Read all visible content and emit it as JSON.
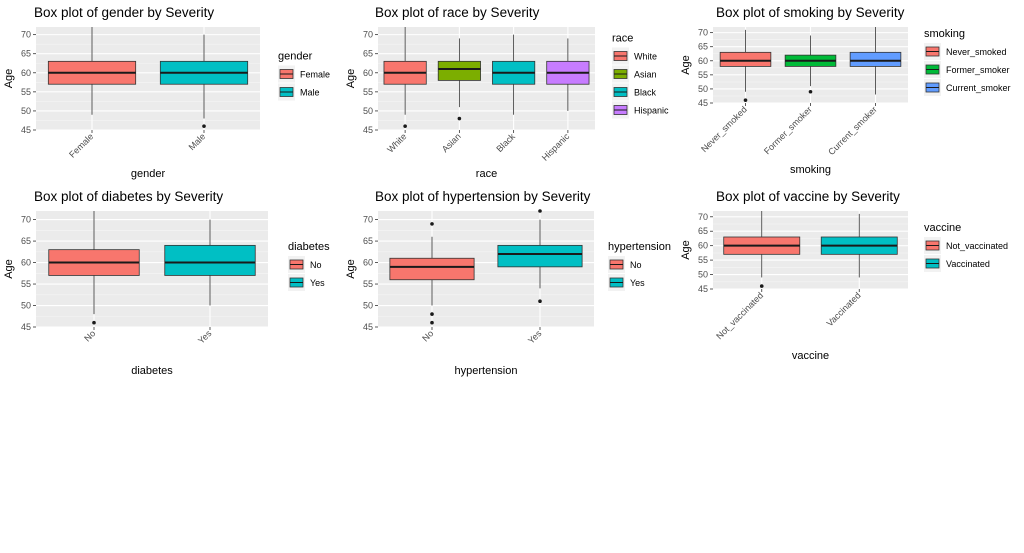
{
  "chart_data": [
    {
      "type": "boxplot",
      "title": "Box plot of gender by Severity",
      "xlabel": "gender",
      "ylabel": "Age",
      "ylim": [
        45,
        72
      ],
      "yticks": [
        45,
        50,
        55,
        60,
        65,
        70
      ],
      "legend_title": "gender",
      "categories": [
        "Female",
        "Male"
      ],
      "colors": [
        "#F8766D",
        "#00BFC4"
      ],
      "boxes": [
        {
          "q1": 57,
          "median": 60,
          "q3": 63,
          "lower": 49,
          "upper": 72,
          "outliers": []
        },
        {
          "q1": 57,
          "median": 60,
          "q3": 63,
          "lower": 48,
          "upper": 70,
          "outliers": [
            46
          ]
        }
      ]
    },
    {
      "type": "boxplot",
      "title": "Box plot of race by Severity",
      "xlabel": "race",
      "ylabel": "Age",
      "ylim": [
        45,
        72
      ],
      "yticks": [
        45,
        50,
        55,
        60,
        65,
        70
      ],
      "legend_title": "race",
      "categories": [
        "White",
        "Asian",
        "Black",
        "Hispanic"
      ],
      "colors": [
        "#F8766D",
        "#7CAE00",
        "#00BFC4",
        "#C77CFF"
      ],
      "boxes": [
        {
          "q1": 57,
          "median": 60,
          "q3": 63,
          "lower": 49,
          "upper": 72,
          "outliers": [
            46
          ]
        },
        {
          "q1": 58,
          "median": 61,
          "q3": 63,
          "lower": 51,
          "upper": 69,
          "outliers": [
            48
          ]
        },
        {
          "q1": 57,
          "median": 60,
          "q3": 63,
          "lower": 49,
          "upper": 70,
          "outliers": []
        },
        {
          "q1": 57,
          "median": 60,
          "q3": 63,
          "lower": 50,
          "upper": 69,
          "outliers": []
        }
      ]
    },
    {
      "type": "boxplot",
      "title": "Box plot of smoking by Severity",
      "xlabel": "smoking",
      "ylabel": "Age",
      "ylim": [
        45,
        72
      ],
      "yticks": [
        45,
        50,
        55,
        60,
        65,
        70
      ],
      "legend_title": "smoking",
      "categories": [
        "Never_smoked",
        "Former_smoker",
        "Current_smoker"
      ],
      "colors": [
        "#F8766D",
        "#00BA38",
        "#619CFF"
      ],
      "boxes": [
        {
          "q1": 58,
          "median": 60,
          "q3": 63,
          "lower": 49,
          "upper": 71,
          "outliers": [
            46
          ]
        },
        {
          "q1": 58,
          "median": 60,
          "q3": 62,
          "lower": 51,
          "upper": 69,
          "outliers": [
            49
          ]
        },
        {
          "q1": 58,
          "median": 60,
          "q3": 63,
          "lower": 48,
          "upper": 72,
          "outliers": []
        }
      ]
    },
    {
      "type": "boxplot",
      "title": "Box plot of diabetes by Severity",
      "xlabel": "diabetes",
      "ylabel": "Age",
      "ylim": [
        45,
        72
      ],
      "yticks": [
        45,
        50,
        55,
        60,
        65,
        70
      ],
      "legend_title": "diabetes",
      "categories": [
        "No",
        "Yes"
      ],
      "colors": [
        "#F8766D",
        "#00BFC4"
      ],
      "boxes": [
        {
          "q1": 57,
          "median": 60,
          "q3": 63,
          "lower": 48,
          "upper": 72,
          "outliers": [
            46
          ]
        },
        {
          "q1": 57,
          "median": 60,
          "q3": 64,
          "lower": 50,
          "upper": 70,
          "outliers": []
        }
      ]
    },
    {
      "type": "boxplot",
      "title": "Box plot of hypertension by Severity",
      "xlabel": "hypertension",
      "ylabel": "Age",
      "ylim": [
        45,
        72
      ],
      "yticks": [
        45,
        50,
        55,
        60,
        65,
        70
      ],
      "legend_title": "hypertension",
      "categories": [
        "No",
        "Yes"
      ],
      "colors": [
        "#F8766D",
        "#00BFC4"
      ],
      "boxes": [
        {
          "q1": 56,
          "median": 59,
          "q3": 61,
          "lower": 50,
          "upper": 66,
          "outliers": [
            46,
            48,
            69
          ]
        },
        {
          "q1": 59,
          "median": 62,
          "q3": 64,
          "lower": 54,
          "upper": 70,
          "outliers": [
            51,
            72
          ]
        }
      ]
    },
    {
      "type": "boxplot",
      "title": "Box plot of vaccine by Severity",
      "xlabel": "vaccine",
      "ylabel": "Age",
      "ylim": [
        45,
        72
      ],
      "yticks": [
        45,
        50,
        55,
        60,
        65,
        70
      ],
      "legend_title": "vaccine",
      "categories": [
        "Not_vaccinated",
        "Vaccinated"
      ],
      "colors": [
        "#F8766D",
        "#00BFC4"
      ],
      "boxes": [
        {
          "q1": 57,
          "median": 60,
          "q3": 63,
          "lower": 49,
          "upper": 72,
          "outliers": [
            46
          ]
        },
        {
          "q1": 57,
          "median": 60,
          "q3": 63,
          "lower": 49,
          "upper": 71,
          "outliers": []
        }
      ]
    }
  ]
}
